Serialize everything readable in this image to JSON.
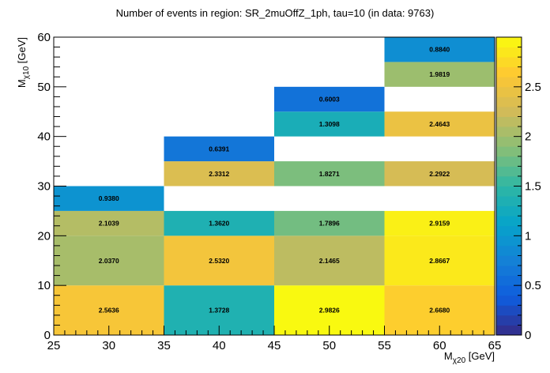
{
  "chart_data": {
    "type": "heatmap",
    "title": "Number of events in region: SR_2muOffZ_1ph, tau=10 (in data: 9763)",
    "xlabel": {
      "main": "M",
      "sub": "χ20",
      "unit": " [GeV]"
    },
    "ylabel": {
      "main": "M",
      "sub": "χ10",
      "unit": " [GeV]"
    },
    "xlim": [
      25,
      65
    ],
    "ylim": [
      0,
      60
    ],
    "zlim": [
      0,
      3
    ],
    "x_ticks": [
      25,
      30,
      35,
      40,
      45,
      50,
      55,
      60,
      65
    ],
    "y_ticks": [
      0,
      10,
      20,
      30,
      40,
      50,
      60
    ],
    "z_ticks": [
      0,
      0.5,
      1,
      1.5,
      2,
      2.5
    ],
    "palette": [
      "#352a87",
      "#0f5cdd",
      "#1481d6",
      "#06a4ca",
      "#2eb7a4",
      "#87bf77",
      "#d1bb59",
      "#fec832",
      "#f9fb0e"
    ],
    "cells": [
      {
        "x0": 25,
        "x1": 35,
        "y0": 0,
        "y1": 10,
        "value": 2.5636,
        "label": "2.5636"
      },
      {
        "x0": 25,
        "x1": 35,
        "y0": 10,
        "y1": 20,
        "value": 2.037,
        "label": "2.0370"
      },
      {
        "x0": 25,
        "x1": 35,
        "y0": 20,
        "y1": 25,
        "value": 2.1039,
        "label": "2.1039"
      },
      {
        "x0": 25,
        "x1": 35,
        "y0": 25,
        "y1": 30,
        "value": 0.938,
        "label": "0.9380"
      },
      {
        "x0": 35,
        "x1": 45,
        "y0": 0,
        "y1": 10,
        "value": 1.3728,
        "label": "1.3728"
      },
      {
        "x0": 35,
        "x1": 45,
        "y0": 10,
        "y1": 20,
        "value": 2.532,
        "label": "2.5320"
      },
      {
        "x0": 35,
        "x1": 45,
        "y0": 20,
        "y1": 25,
        "value": 1.362,
        "label": "1.3620"
      },
      {
        "x0": 35,
        "x1": 45,
        "y0": 30,
        "y1": 35,
        "value": 2.3312,
        "label": "2.3312"
      },
      {
        "x0": 35,
        "x1": 45,
        "y0": 35,
        "y1": 40,
        "value": 0.6391,
        "label": "0.6391"
      },
      {
        "x0": 45,
        "x1": 55,
        "y0": 0,
        "y1": 10,
        "value": 2.9826,
        "label": "2.9826"
      },
      {
        "x0": 45,
        "x1": 55,
        "y0": 10,
        "y1": 20,
        "value": 2.1465,
        "label": "2.1465"
      },
      {
        "x0": 45,
        "x1": 55,
        "y0": 20,
        "y1": 25,
        "value": 1.7896,
        "label": "1.7896"
      },
      {
        "x0": 45,
        "x1": 55,
        "y0": 30,
        "y1": 35,
        "value": 1.8271,
        "label": "1.8271"
      },
      {
        "x0": 45,
        "x1": 55,
        "y0": 40,
        "y1": 45,
        "value": 1.3098,
        "label": "1.3098"
      },
      {
        "x0": 45,
        "x1": 55,
        "y0": 45,
        "y1": 50,
        "value": 0.6003,
        "label": "0.6003"
      },
      {
        "x0": 55,
        "x1": 65,
        "y0": 0,
        "y1": 10,
        "value": 2.668,
        "label": "2.6680"
      },
      {
        "x0": 55,
        "x1": 65,
        "y0": 10,
        "y1": 20,
        "value": 2.8667,
        "label": "2.8667"
      },
      {
        "x0": 55,
        "x1": 65,
        "y0": 20,
        "y1": 25,
        "value": 2.9159,
        "label": "2.9159"
      },
      {
        "x0": 55,
        "x1": 65,
        "y0": 30,
        "y1": 35,
        "value": 2.2922,
        "label": "2.2922"
      },
      {
        "x0": 55,
        "x1": 65,
        "y0": 40,
        "y1": 45,
        "value": 2.4643,
        "label": "2.4643"
      },
      {
        "x0": 55,
        "x1": 65,
        "y0": 50,
        "y1": 55,
        "value": 1.9819,
        "label": "1.9819"
      },
      {
        "x0": 55,
        "x1": 65,
        "y0": 55,
        "y1": 60,
        "value": 0.884,
        "label": "0.8840"
      }
    ]
  }
}
